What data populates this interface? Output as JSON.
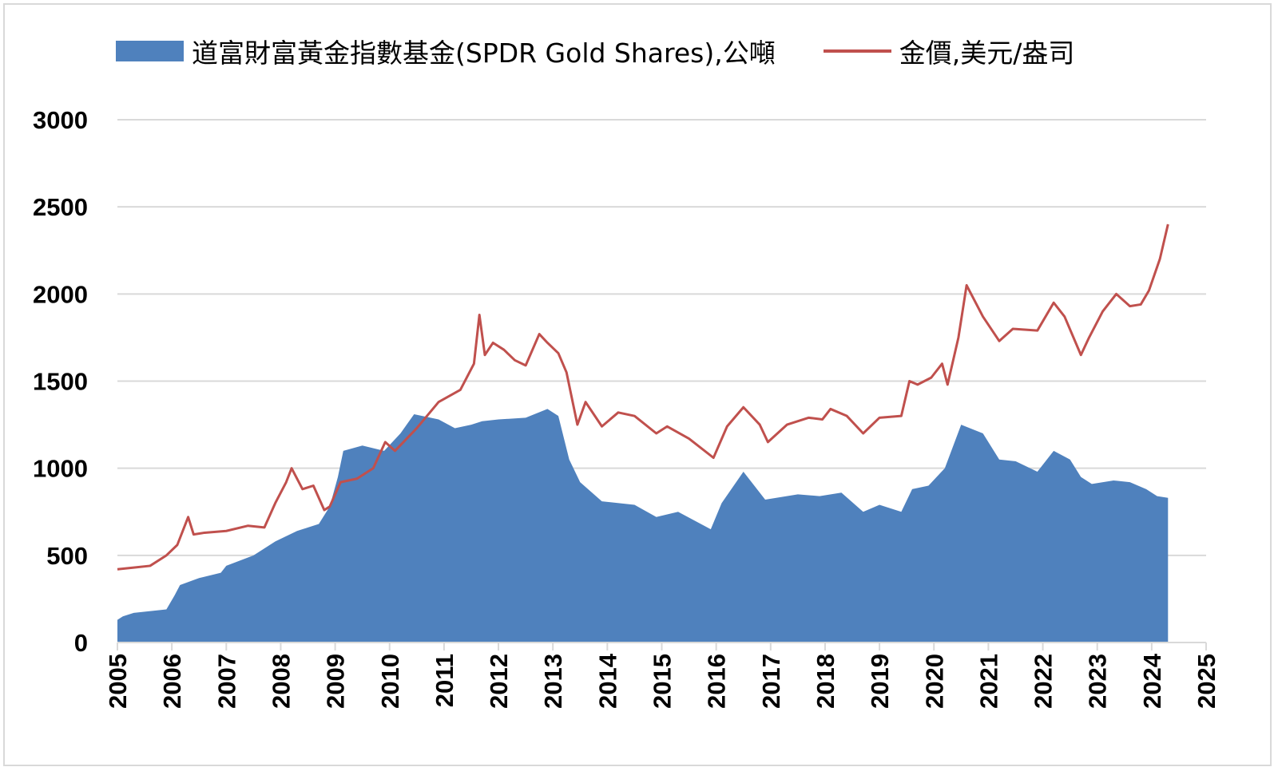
{
  "chart_data": {
    "type": "area+line",
    "title": "",
    "xlabel": "",
    "ylabel": "",
    "xlim": [
      2005,
      2025
    ],
    "ylim": [
      0,
      3000
    ],
    "yticks": [
      "0",
      "500",
      "1000",
      "1500",
      "2000",
      "2500",
      "3000"
    ],
    "xticks": [
      "2005",
      "2006",
      "2007",
      "2008",
      "2009",
      "2010",
      "2011",
      "2012",
      "2013",
      "2014",
      "2015",
      "2016",
      "2017",
      "2018",
      "2019",
      "2020",
      "2021",
      "2022",
      "2023",
      "2024",
      "2025"
    ],
    "grid": true,
    "legend_position": "top",
    "series": [
      {
        "name": "道富財富黃金指數基金(SPDR Gold Shares),公噸",
        "type": "area",
        "color": "#4f81bd",
        "x": [
          2005.0,
          2005.1,
          2005.3,
          2005.9,
          2006.05,
          2006.15,
          2006.5,
          2006.9,
          2007.0,
          2007.5,
          2007.9,
          2008.3,
          2008.5,
          2008.7,
          2008.9,
          2009.05,
          2009.15,
          2009.5,
          2009.9,
          2010.2,
          2010.45,
          2010.9,
          2011.2,
          2011.5,
          2011.7,
          2012.0,
          2012.5,
          2012.9,
          2013.1,
          2013.3,
          2013.5,
          2013.9,
          2014.5,
          2014.9,
          2015.3,
          2015.9,
          2016.1,
          2016.5,
          2016.9,
          2017.5,
          2017.9,
          2018.3,
          2018.7,
          2019.0,
          2019.4,
          2019.6,
          2019.9,
          2020.2,
          2020.5,
          2020.9,
          2021.2,
          2021.5,
          2021.9,
          2022.2,
          2022.5,
          2022.7,
          2022.9,
          2023.3,
          2023.6,
          2023.9,
          2024.1,
          2024.3
        ],
        "values": [
          130,
          150,
          170,
          190,
          270,
          330,
          370,
          400,
          440,
          500,
          580,
          640,
          660,
          680,
          780,
          950,
          1100,
          1130,
          1100,
          1200,
          1310,
          1280,
          1230,
          1250,
          1270,
          1280,
          1290,
          1340,
          1300,
          1050,
          920,
          810,
          790,
          720,
          750,
          650,
          800,
          980,
          820,
          850,
          840,
          860,
          750,
          790,
          750,
          880,
          900,
          1000,
          1250,
          1200,
          1050,
          1040,
          980,
          1100,
          1050,
          950,
          910,
          930,
          920,
          880,
          840,
          830
        ]
      },
      {
        "name": "金價,美元/盎司",
        "type": "line",
        "color": "#c0504d",
        "x": [
          2005.0,
          2005.3,
          2005.6,
          2005.9,
          2006.1,
          2006.3,
          2006.4,
          2006.6,
          2007.0,
          2007.4,
          2007.7,
          2007.9,
          2008.1,
          2008.2,
          2008.4,
          2008.6,
          2008.8,
          2008.9,
          2009.1,
          2009.4,
          2009.7,
          2009.92,
          2010.1,
          2010.5,
          2010.9,
          2011.3,
          2011.55,
          2011.65,
          2011.75,
          2011.9,
          2012.1,
          2012.3,
          2012.5,
          2012.75,
          2012.9,
          2013.1,
          2013.25,
          2013.45,
          2013.6,
          2013.9,
          2014.2,
          2014.5,
          2014.9,
          2015.1,
          2015.5,
          2015.95,
          2016.2,
          2016.5,
          2016.8,
          2016.95,
          2017.3,
          2017.7,
          2017.95,
          2018.1,
          2018.4,
          2018.7,
          2019.0,
          2019.4,
          2019.55,
          2019.7,
          2019.95,
          2020.15,
          2020.25,
          2020.45,
          2020.6,
          2020.9,
          2021.2,
          2021.45,
          2021.9,
          2022.2,
          2022.4,
          2022.7,
          2022.85,
          2023.1,
          2023.35,
          2023.6,
          2023.8,
          2023.95,
          2024.15,
          2024.3
        ],
        "values": [
          420,
          430,
          440,
          500,
          560,
          720,
          620,
          630,
          640,
          670,
          660,
          800,
          920,
          1000,
          880,
          900,
          760,
          780,
          920,
          940,
          1000,
          1150,
          1100,
          1230,
          1380,
          1450,
          1600,
          1880,
          1650,
          1720,
          1680,
          1620,
          1590,
          1770,
          1720,
          1660,
          1550,
          1250,
          1380,
          1240,
          1320,
          1300,
          1200,
          1240,
          1170,
          1060,
          1240,
          1350,
          1250,
          1150,
          1250,
          1290,
          1280,
          1340,
          1300,
          1200,
          1290,
          1300,
          1500,
          1480,
          1520,
          1600,
          1480,
          1750,
          2050,
          1870,
          1730,
          1800,
          1790,
          1950,
          1870,
          1650,
          1750,
          1900,
          2000,
          1930,
          1940,
          2020,
          2200,
          2400
        ]
      }
    ]
  }
}
